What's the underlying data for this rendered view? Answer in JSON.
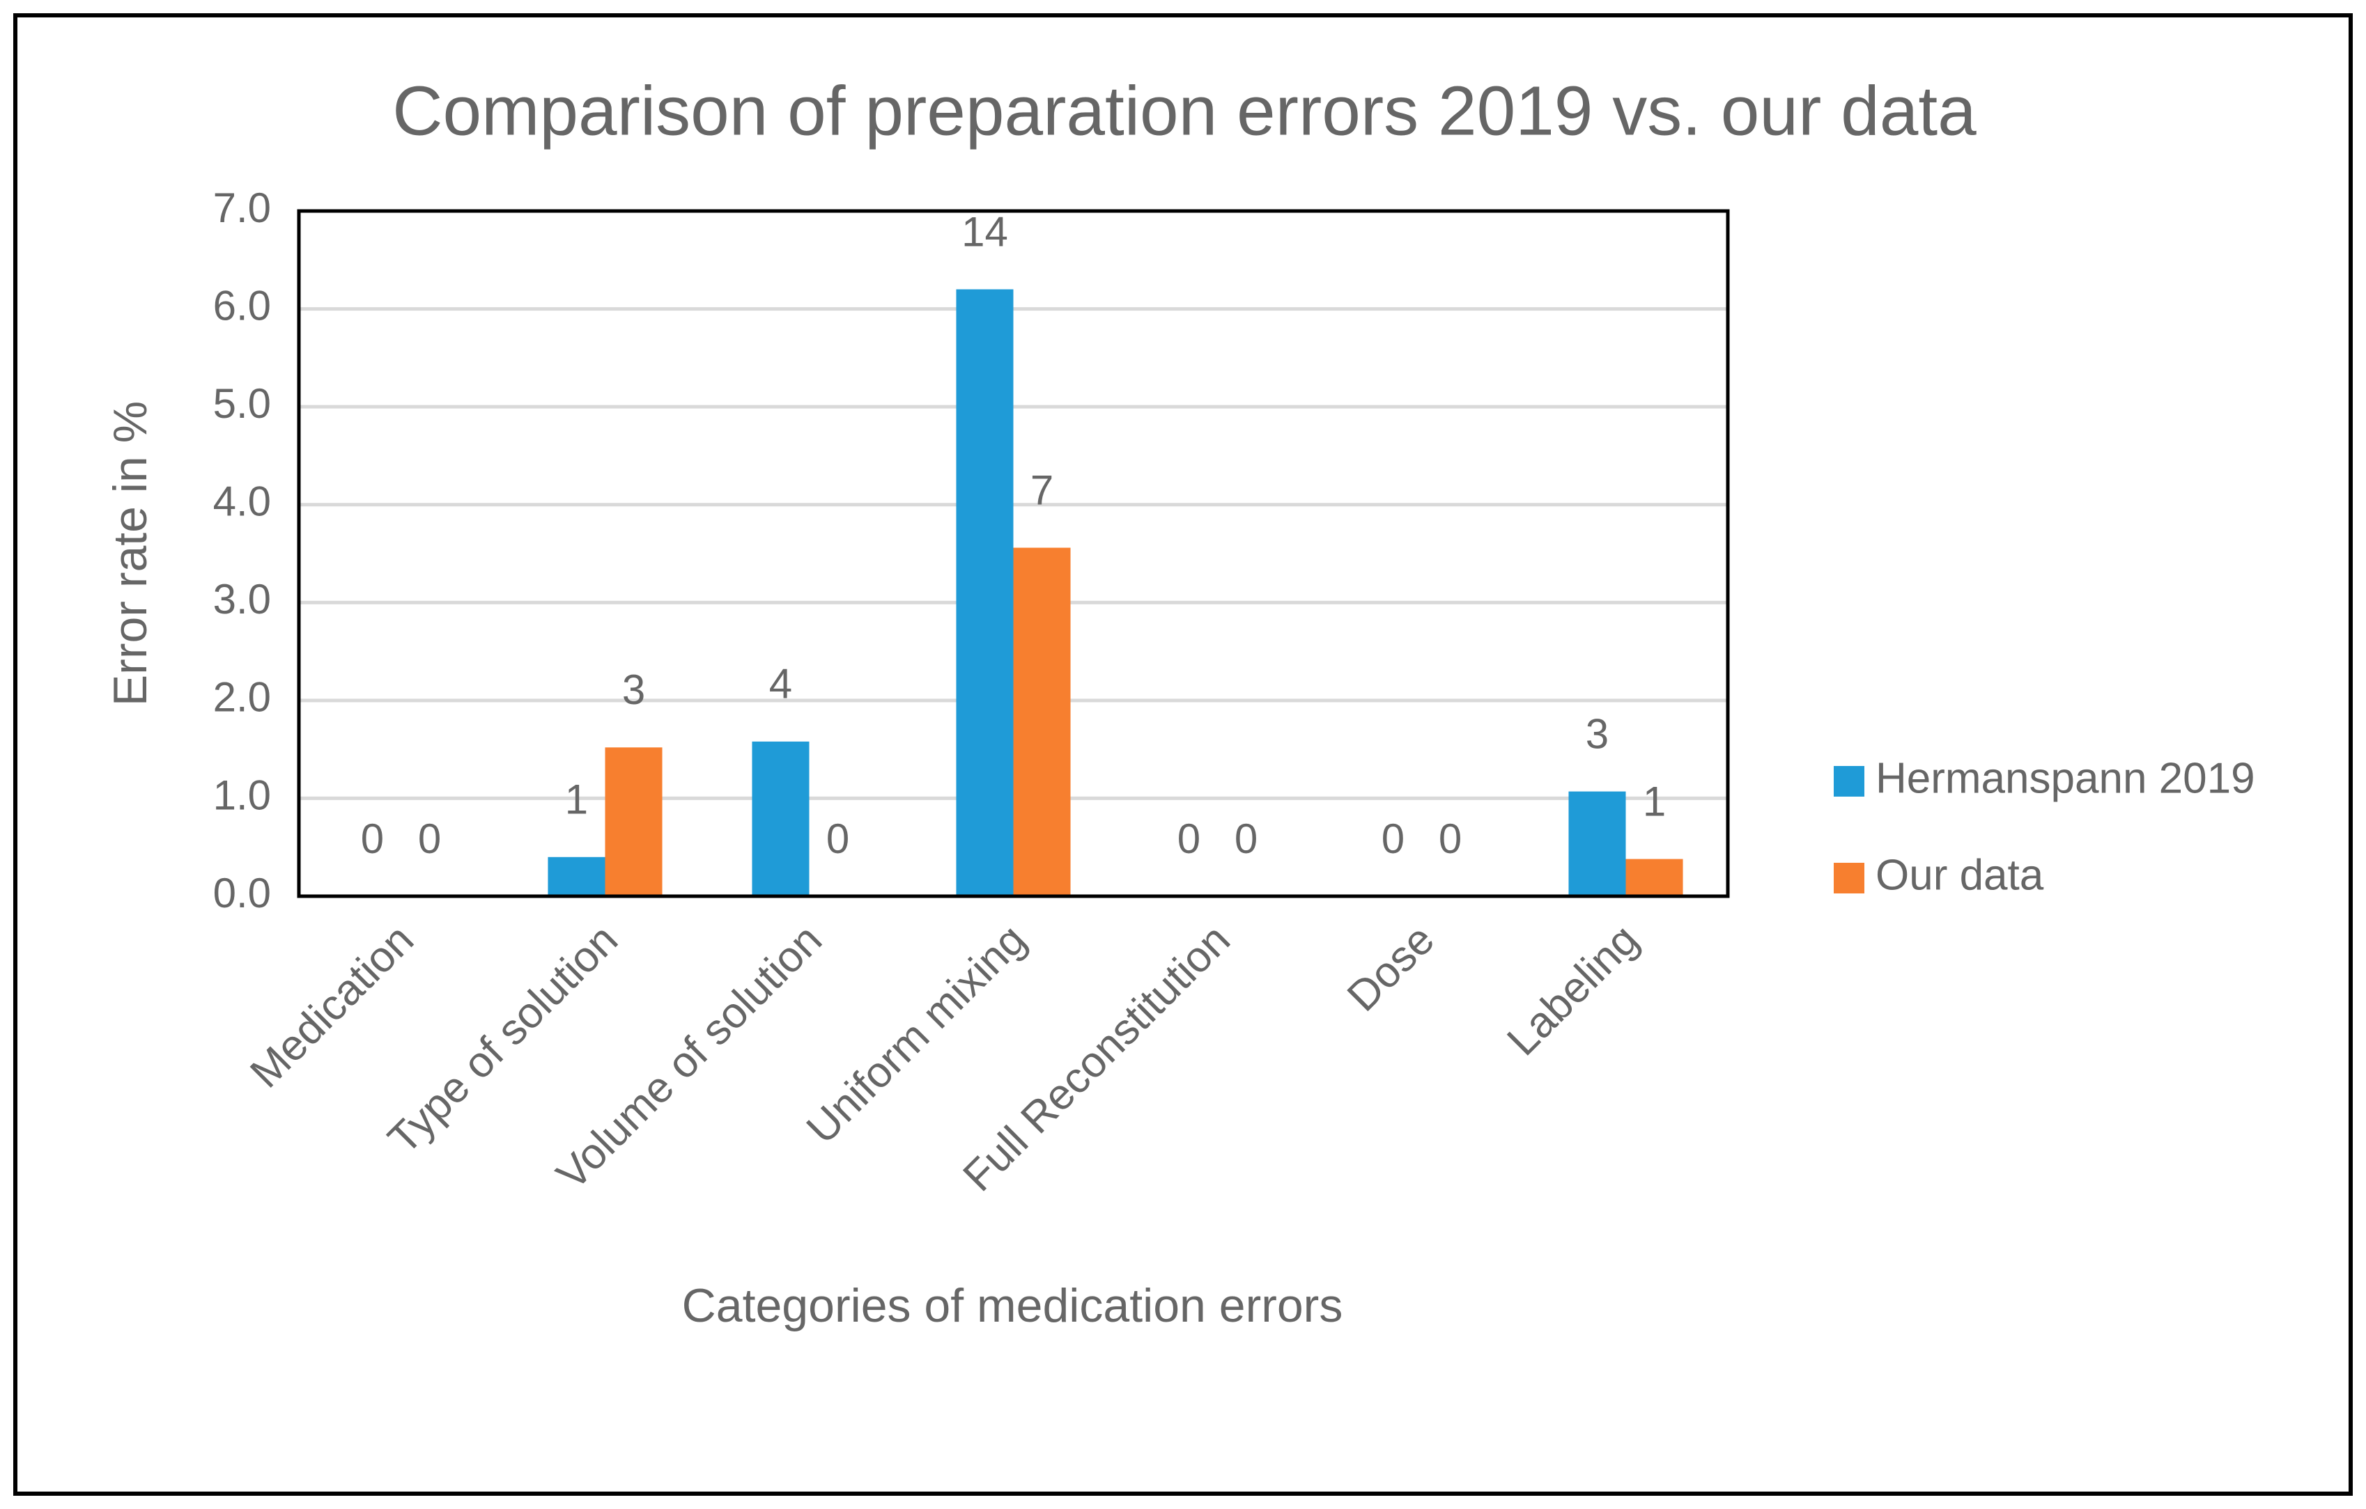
{
  "chart_data": {
    "type": "bar",
    "title": "Comparison of preparation errors 2019 vs. our data",
    "x_label": "Categories of medication errors",
    "y_label": "Error rate in %",
    "categories": [
      "Medication",
      "Type of solution",
      "Volume of solution",
      "Uniform mixing",
      "Full Reconstitution",
      "Dose",
      "Labeling"
    ],
    "series": [
      {
        "name": "Hermanspann 2019",
        "color": "#1f9bd7",
        "values": [
          0,
          0.4,
          1.58,
          6.2,
          0,
          0,
          1.07
        ],
        "error_counts": [
          0,
          1,
          4,
          14,
          0,
          0,
          3
        ]
      },
      {
        "name": "Our data",
        "color": "#f77f2f",
        "values": [
          0,
          1.52,
          0,
          3.56,
          0,
          0,
          0.38
        ],
        "error_counts": [
          0,
          3,
          0,
          7,
          0,
          0,
          1
        ]
      }
    ],
    "ylim": [
      0,
      7
    ],
    "yticks": [
      {
        "value": 0,
        "label": "0.0"
      },
      {
        "value": 1,
        "label": "1.0"
      },
      {
        "value": 2,
        "label": "2.0"
      },
      {
        "value": 3,
        "label": "3.0"
      },
      {
        "value": 4,
        "label": "4.0"
      },
      {
        "value": 5,
        "label": "5.0"
      },
      {
        "value": 6,
        "label": "6.0"
      },
      {
        "value": 7,
        "label": "7.0"
      }
    ],
    "grid": true,
    "legend": "right"
  }
}
